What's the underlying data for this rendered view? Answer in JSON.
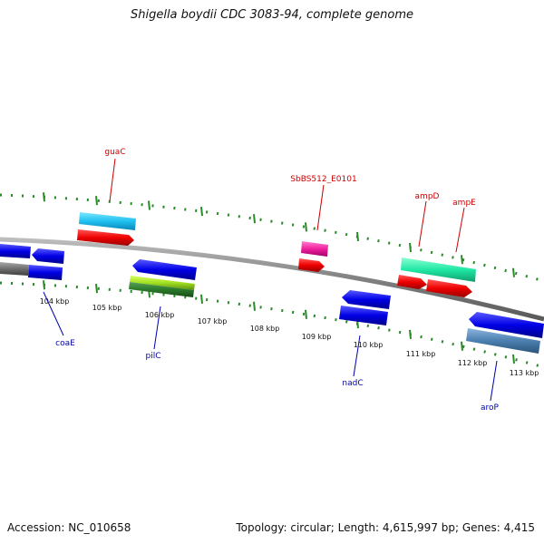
{
  "title": "Shigella boydii CDC 3083-94, complete genome",
  "footer": {
    "accession": "Accession: NC_010658",
    "topology": "Topology: circular; Length: 4,615,997 bp; Genes: 4,415"
  },
  "colors": {
    "backbone": "#7f7f7f",
    "tick_dots": "#2a8a2a",
    "forward_label": "#cc0000",
    "reverse_label": "#0000aa"
  },
  "ticks": [
    "104 kbp",
    "105 kbp",
    "106 kbp",
    "107 kbp",
    "108 kbp",
    "109 kbp",
    "110 kbp",
    "111 kbp",
    "112 kbp",
    "113 kbp"
  ],
  "forward_gene_labels": [
    "guaC",
    "SbBS512_E0101",
    "ampD",
    "ampE"
  ],
  "reverse_gene_labels": [
    "coaE",
    "pilC",
    "nadC",
    "aroP"
  ]
}
